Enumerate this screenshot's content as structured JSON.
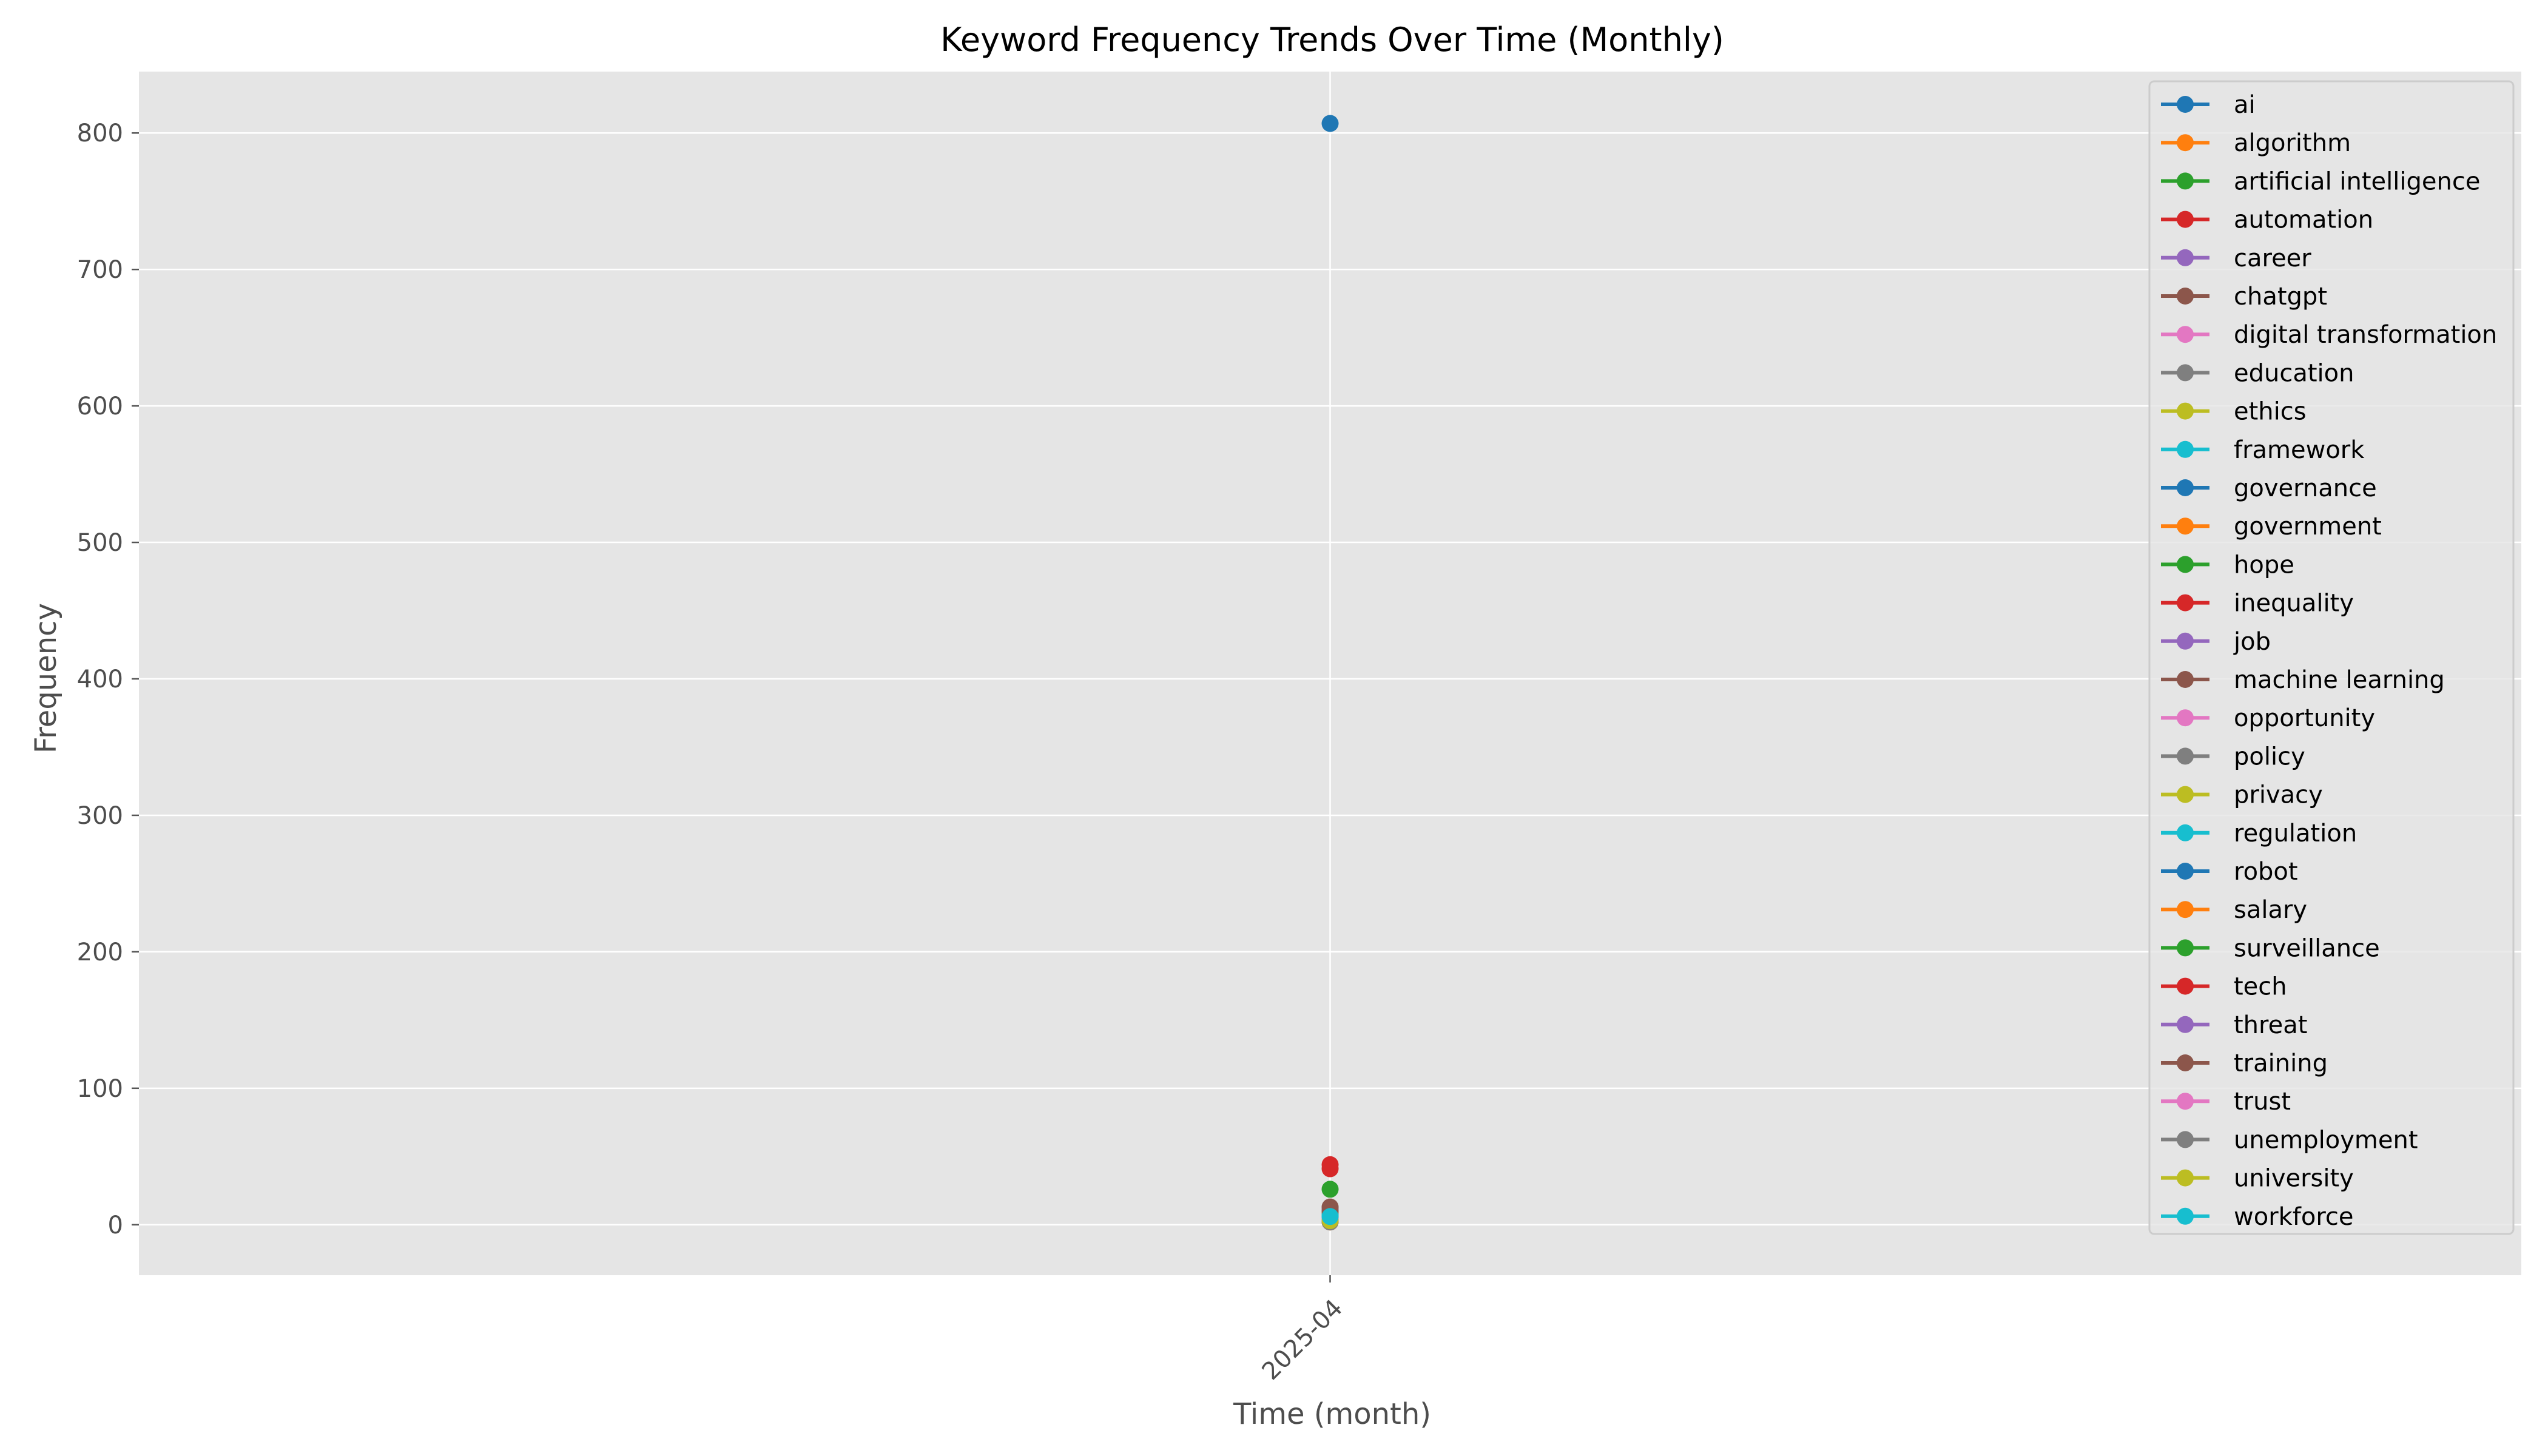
{
  "chart_data": {
    "type": "line",
    "title": "Keyword Frequency Trends Over Time (Monthly)",
    "xlabel": "Time (month)",
    "ylabel": "Frequency",
    "x": [
      "2025-04"
    ],
    "ylim": [
      -37,
      845
    ],
    "yticks": [
      0,
      100,
      200,
      300,
      400,
      500,
      600,
      700,
      800
    ],
    "grid": true,
    "legend_position": "right",
    "series": [
      {
        "name": "ai",
        "color": "#1f77b4",
        "values": [
          807
        ]
      },
      {
        "name": "algorithm",
        "color": "#ff7f0e",
        "values": [
          5
        ]
      },
      {
        "name": "artificial intelligence",
        "color": "#2ca02c",
        "values": [
          26
        ]
      },
      {
        "name": "automation",
        "color": "#d62728",
        "values": [
          41
        ]
      },
      {
        "name": "career",
        "color": "#9467bd",
        "values": [
          6
        ]
      },
      {
        "name": "chatgpt",
        "color": "#8c564b",
        "values": [
          12
        ]
      },
      {
        "name": "digital transformation",
        "color": "#e377c2",
        "values": [
          3
        ]
      },
      {
        "name": "education",
        "color": "#7f7f7f",
        "values": [
          9
        ]
      },
      {
        "name": "ethics",
        "color": "#bcbd22",
        "values": [
          8
        ]
      },
      {
        "name": "framework",
        "color": "#17becf",
        "values": [
          5
        ]
      },
      {
        "name": "governance",
        "color": "#1f77b4",
        "values": [
          7
        ]
      },
      {
        "name": "government",
        "color": "#ff7f0e",
        "values": [
          9
        ]
      },
      {
        "name": "hope",
        "color": "#2ca02c",
        "values": [
          4
        ]
      },
      {
        "name": "inequality",
        "color": "#d62728",
        "values": [
          3
        ]
      },
      {
        "name": "job",
        "color": "#9467bd",
        "values": [
          11
        ]
      },
      {
        "name": "machine learning",
        "color": "#8c564b",
        "values": [
          13
        ]
      },
      {
        "name": "opportunity",
        "color": "#e377c2",
        "values": [
          6
        ]
      },
      {
        "name": "policy",
        "color": "#7f7f7f",
        "values": [
          8
        ]
      },
      {
        "name": "privacy",
        "color": "#bcbd22",
        "values": [
          4
        ]
      },
      {
        "name": "regulation",
        "color": "#17becf",
        "values": [
          7
        ]
      },
      {
        "name": "robot",
        "color": "#1f77b4",
        "values": [
          3
        ]
      },
      {
        "name": "salary",
        "color": "#ff7f0e",
        "values": [
          2
        ]
      },
      {
        "name": "surveillance",
        "color": "#2ca02c",
        "values": [
          3
        ]
      },
      {
        "name": "tech",
        "color": "#d62728",
        "values": [
          44
        ]
      },
      {
        "name": "threat",
        "color": "#9467bd",
        "values": [
          5
        ]
      },
      {
        "name": "training",
        "color": "#8c564b",
        "values": [
          10
        ]
      },
      {
        "name": "trust",
        "color": "#e377c2",
        "values": [
          4
        ]
      },
      {
        "name": "unemployment",
        "color": "#7f7f7f",
        "values": [
          2
        ]
      },
      {
        "name": "university",
        "color": "#bcbd22",
        "values": [
          3
        ]
      },
      {
        "name": "workforce",
        "color": "#17becf",
        "values": [
          6
        ]
      }
    ]
  }
}
